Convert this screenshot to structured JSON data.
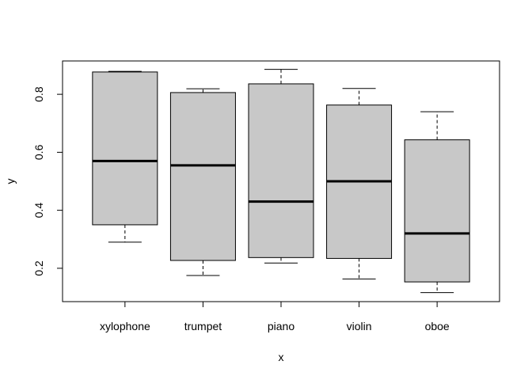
{
  "chart_data": {
    "type": "boxplot",
    "xlabel": "x",
    "ylabel": "y",
    "ylim": [
      0.085,
      0.915
    ],
    "yticks": [
      0.2,
      0.4,
      0.6,
      0.8
    ],
    "ytick_labels": [
      "0.2",
      "0.4",
      "0.6",
      "0.8"
    ],
    "categories": [
      "xylophone",
      "trumpet",
      "piano",
      "violin",
      "oboe"
    ],
    "boxes": [
      {
        "category": "xylophone",
        "min": 0.29,
        "q1": 0.35,
        "median": 0.57,
        "q3": 0.877,
        "max": 0.879
      },
      {
        "category": "trumpet",
        "min": 0.175,
        "q1": 0.227,
        "median": 0.555,
        "q3": 0.806,
        "max": 0.819
      },
      {
        "category": "piano",
        "min": 0.218,
        "q1": 0.237,
        "median": 0.43,
        "q3": 0.836,
        "max": 0.886
      },
      {
        "category": "violin",
        "min": 0.163,
        "q1": 0.234,
        "median": 0.5,
        "q3": 0.763,
        "max": 0.82
      },
      {
        "category": "oboe",
        "min": 0.116,
        "q1": 0.153,
        "median": 0.32,
        "q3": 0.643,
        "max": 0.74
      }
    ],
    "box_color": "#c8c8c8",
    "grid": false,
    "legend": "none"
  }
}
